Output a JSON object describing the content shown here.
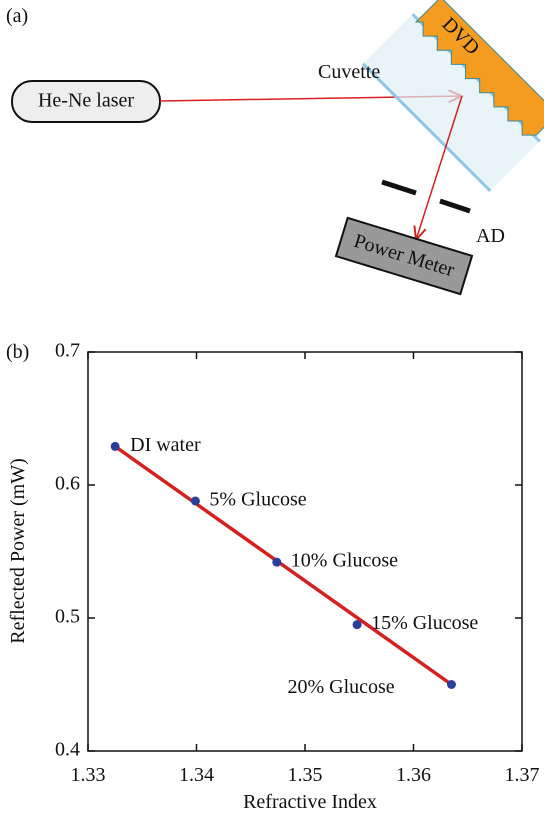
{
  "diagram": {
    "panel_label": "(a)",
    "laser": "He-Ne laser",
    "cuvette": "Cuvette",
    "dvd": "DVD",
    "aperture": "AD",
    "meter": "Power Meter"
  },
  "chart_data": {
    "type": "scatter",
    "panel_label": "(b)",
    "x_label": "Refractive Index",
    "y_label": "Reflected Power (mW)",
    "x": [
      1.3325,
      1.3399,
      1.3474,
      1.3548,
      1.3635
    ],
    "values": [
      0.629,
      0.588,
      0.542,
      0.495,
      0.45
    ],
    "point_labels": [
      "DI water",
      "5% Glucose",
      "10% Glucose",
      "15% Glucose",
      "20% Glucose"
    ],
    "color": "#2a3f9a",
    "fit": {
      "color": "#d62020",
      "x": [
        1.3325,
        1.3635
      ],
      "values": [
        0.629,
        0.45
      ]
    },
    "xlim": [
      1.33,
      1.37
    ],
    "xticks": [
      1.33,
      1.34,
      1.35,
      1.36,
      1.37
    ],
    "ylim": [
      0.4,
      0.7
    ],
    "yticks": [
      0.4,
      0.5,
      0.6,
      0.7
    ]
  }
}
